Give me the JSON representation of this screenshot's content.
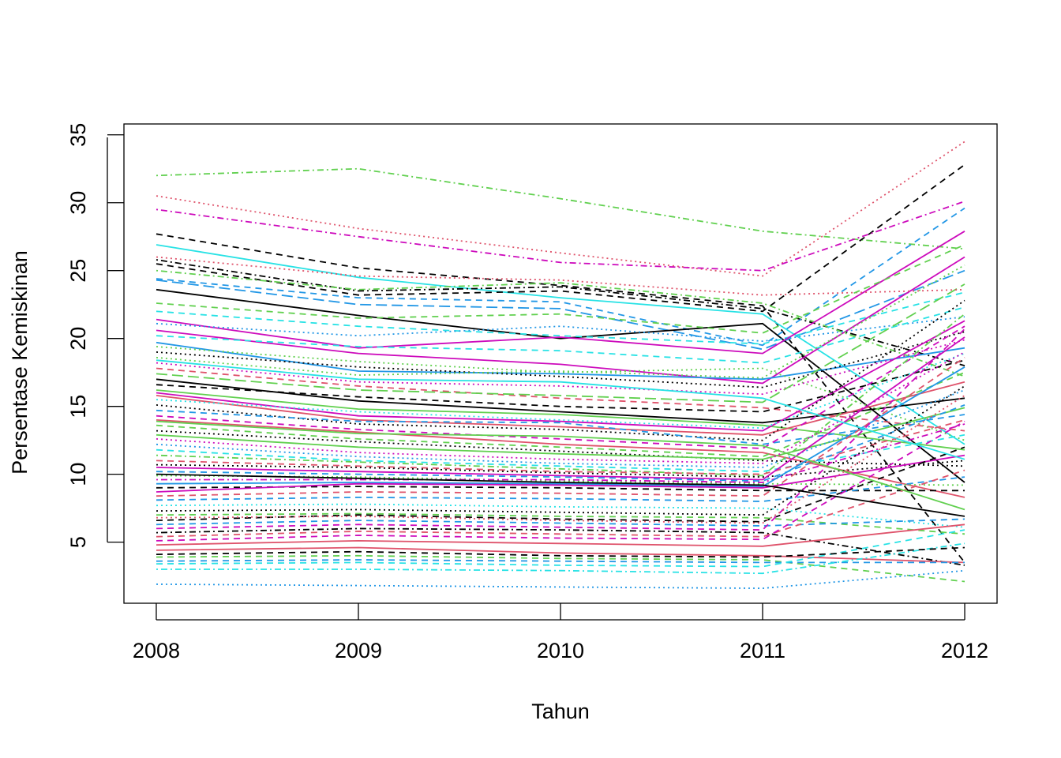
{
  "chart_data": {
    "type": "line",
    "title": "",
    "xlabel": "Tahun",
    "ylabel": "Persentase Kemiskinan",
    "x": [
      2008,
      2009,
      2010,
      2011,
      2012
    ],
    "x_tick_labels": [
      "2008",
      "2009",
      "2010",
      "2011",
      "2012"
    ],
    "y_ticks": [
      5,
      10,
      15,
      20,
      25,
      30
    ],
    "y_tick_labels": [
      "5",
      "10",
      "15",
      "20",
      "25",
      "30"
    ],
    "xlim": [
      2007.84,
      2012.16
    ],
    "ylim": [
      0.5,
      35.8
    ],
    "grid": false,
    "legend": "none",
    "palette": [
      "#000000",
      "#DF536B",
      "#61D04F",
      "#2297E6",
      "#28E2E5",
      "#CD0BBC"
    ],
    "series": [
      {
        "values": [
          32.0,
          32.5,
          30.3,
          27.9,
          26.6
        ],
        "color": "#61D04F",
        "dash": "dotdash"
      },
      {
        "values": [
          30.5,
          28.1,
          26.3,
          24.6,
          34.5
        ],
        "color": "#DF536B",
        "dash": "dotted"
      },
      {
        "values": [
          27.7,
          25.2,
          23.9,
          22.4,
          3.5
        ],
        "color": "#000000",
        "dash": "dashed"
      },
      {
        "values": [
          26.9,
          24.5,
          23.0,
          21.8,
          12.2
        ],
        "color": "#28E2E5",
        "dash": "solid"
      },
      {
        "values": [
          25.8,
          23.5,
          23.8,
          22.2,
          18.0
        ],
        "color": "#000000",
        "dash": "dotdash"
      },
      {
        "values": [
          25.5,
          23.2,
          23.5,
          22.0,
          32.8
        ],
        "color": "#000000",
        "dash": "dashed"
      },
      {
        "values": [
          25.0,
          23.6,
          24.1,
          22.6,
          17.2
        ],
        "color": "#61D04F",
        "dash": "dotdash"
      },
      {
        "values": [
          24.4,
          23.0,
          22.7,
          19.5,
          29.6
        ],
        "color": "#2297E6",
        "dash": "dashed"
      },
      {
        "values": [
          24.3,
          22.5,
          22.2,
          19.2,
          25.0
        ],
        "color": "#2297E6",
        "dash": "longdash"
      },
      {
        "values": [
          23.6,
          21.7,
          20.0,
          21.1,
          9.4
        ],
        "color": "#000000",
        "dash": "solid"
      },
      {
        "values": [
          22.0,
          20.9,
          20.2,
          19.6,
          23.4
        ],
        "color": "#28E2E5",
        "dash": "dashed"
      },
      {
        "values": [
          21.4,
          19.3,
          20.1,
          18.9,
          27.9
        ],
        "color": "#CD0BBC",
        "dash": "solid"
      },
      {
        "values": [
          21.1,
          20.2,
          20.9,
          19.8,
          21.6
        ],
        "color": "#2297E6",
        "dash": "dotted"
      },
      {
        "values": [
          20.6,
          18.9,
          18.1,
          16.7,
          26.0
        ],
        "color": "#CD0BBC",
        "dash": "solid"
      },
      {
        "values": [
          20.2,
          19.4,
          19.1,
          18.2,
          22.3
        ],
        "color": "#28E2E5",
        "dash": "dashed"
      },
      {
        "values": [
          19.7,
          17.6,
          17.4,
          17.0,
          19.3
        ],
        "color": "#2297E6",
        "dash": "solid"
      },
      {
        "values": [
          19.4,
          18.3,
          17.5,
          17.8,
          12.5
        ],
        "color": "#61D04F",
        "dash": "dotted"
      },
      {
        "values": [
          19.0,
          17.9,
          17.2,
          16.4,
          20.5
        ],
        "color": "#000000",
        "dash": "dotted"
      },
      {
        "values": [
          18.6,
          17.3,
          17.6,
          17.1,
          25.4
        ],
        "color": "#61D04F",
        "dash": "dotted"
      },
      {
        "values": [
          18.2,
          16.8,
          16.5,
          15.9,
          19.9
        ],
        "color": "#CD0BBC",
        "dash": "dotted"
      },
      {
        "values": [
          17.8,
          16.5,
          15.6,
          14.9,
          13.2
        ],
        "color": "#DF536B",
        "dash": "dashed"
      },
      {
        "values": [
          17.4,
          16.2,
          15.8,
          15.3,
          24.0
        ],
        "color": "#61D04F",
        "dash": "longdash"
      },
      {
        "values": [
          17.0,
          15.4,
          14.6,
          13.8,
          15.6
        ],
        "color": "#000000",
        "dash": "solid"
      },
      {
        "values": [
          16.6,
          15.7,
          15.0,
          14.6,
          18.4
        ],
        "color": "#000000",
        "dash": "dashed"
      },
      {
        "values": [
          16.2,
          14.8,
          14.4,
          13.6,
          11.8
        ],
        "color": "#61D04F",
        "dash": "solid"
      },
      {
        "values": [
          16.0,
          14.3,
          13.9,
          13.2,
          21.3
        ],
        "color": "#CD0BBC",
        "dash": "solid"
      },
      {
        "values": [
          15.8,
          14.0,
          13.5,
          12.9,
          16.8
        ],
        "color": "#DF536B",
        "dash": "solid"
      },
      {
        "values": [
          15.5,
          14.6,
          14.0,
          13.4,
          18.9
        ],
        "color": "#28E2E5",
        "dash": "dotted"
      },
      {
        "values": [
          15.1,
          13.7,
          13.3,
          12.5,
          22.8
        ],
        "color": "#000000",
        "dash": "dotted"
      },
      {
        "values": [
          14.7,
          13.9,
          13.8,
          12.2,
          14.4
        ],
        "color": "#2297E6",
        "dash": "dashed"
      },
      {
        "values": [
          14.3,
          13.3,
          12.6,
          11.9,
          20.9
        ],
        "color": "#CD0BBC",
        "dash": "dashed"
      },
      {
        "values": [
          14.0,
          13.1,
          12.2,
          11.6,
          8.3
        ],
        "color": "#DF536B",
        "dash": "solid"
      },
      {
        "values": [
          13.6,
          12.6,
          12.0,
          11.3,
          17.5
        ],
        "color": "#61D04F",
        "dash": "dashed"
      },
      {
        "values": [
          13.2,
          12.4,
          11.7,
          11.0,
          10.6
        ],
        "color": "#000000",
        "dash": "dotted"
      },
      {
        "values": [
          12.9,
          12.0,
          11.5,
          11.1,
          14.9
        ],
        "color": "#61D04F",
        "dash": "solid"
      },
      {
        "values": [
          12.6,
          11.6,
          11.1,
          10.8,
          19.0
        ],
        "color": "#CD0BBC",
        "dash": "dotted"
      },
      {
        "values": [
          12.2,
          11.3,
          10.8,
          10.5,
          16.2
        ],
        "color": "#2297E6",
        "dash": "dotted"
      },
      {
        "values": [
          11.8,
          11.0,
          10.6,
          10.2,
          12.9
        ],
        "color": "#28E2E5",
        "dash": "dashed"
      },
      {
        "values": [
          11.4,
          10.9,
          10.4,
          9.9,
          21.8
        ],
        "color": "#61D04F",
        "dash": "dotdash"
      },
      {
        "values": [
          11.0,
          10.6,
          10.2,
          10.0,
          14.0
        ],
        "color": "#DF536B",
        "dash": "dashed"
      },
      {
        "values": [
          10.7,
          10.5,
          10.1,
          9.8,
          11.0
        ],
        "color": "#000000",
        "dash": "dotted"
      },
      {
        "values": [
          10.5,
          10.2,
          9.9,
          9.6,
          20.1
        ],
        "color": "#CD0BBC",
        "dash": "solid"
      },
      {
        "values": [
          10.2,
          10.0,
          9.8,
          9.5,
          15.1
        ],
        "color": "#2297E6",
        "dash": "dashed"
      },
      {
        "values": [
          9.9,
          9.8,
          9.5,
          9.3,
          9.2
        ],
        "color": "#61D04F",
        "dash": "dotted"
      },
      {
        "values": [
          9.6,
          9.6,
          9.6,
          9.4,
          13.7
        ],
        "color": "#CD0BBC",
        "dash": "dotdash"
      },
      {
        "values": [
          9.3,
          9.4,
          9.3,
          9.1,
          17.9
        ],
        "color": "#2297E6",
        "dash": "solid"
      },
      {
        "values": [
          9.0,
          9.1,
          9.0,
          8.8,
          8.8
        ],
        "color": "#000000",
        "dash": "dashed"
      },
      {
        "values": [
          8.7,
          9.3,
          9.2,
          9.0,
          11.4
        ],
        "color": "#CD0BBC",
        "dash": "solid"
      },
      {
        "values": [
          8.4,
          8.7,
          8.6,
          8.4,
          18.6
        ],
        "color": "#DF536B",
        "dash": "dashed"
      },
      {
        "values": [
          8.1,
          8.3,
          8.2,
          8.0,
          9.8
        ],
        "color": "#2297E6",
        "dash": "dashed"
      },
      {
        "values": [
          7.7,
          7.8,
          7.6,
          7.5,
          6.1
        ],
        "color": "#28E2E5",
        "dash": "dotted"
      },
      {
        "values": [
          7.3,
          7.4,
          7.2,
          7.0,
          16.5
        ],
        "color": "#000000",
        "dash": "dotted"
      },
      {
        "values": [
          7.0,
          7.1,
          6.9,
          6.8,
          5.6
        ],
        "color": "#61D04F",
        "dash": "dashed"
      },
      {
        "values": [
          6.6,
          7.0,
          6.7,
          6.5,
          12.0
        ],
        "color": "#000000",
        "dash": "dashed"
      },
      {
        "values": [
          6.3,
          6.6,
          6.4,
          6.2,
          6.7
        ],
        "color": "#2297E6",
        "dash": "dashed"
      },
      {
        "values": [
          6.0,
          6.3,
          6.1,
          5.9,
          20.7
        ],
        "color": "#CD0BBC",
        "dash": "dashed"
      },
      {
        "values": [
          5.7,
          6.0,
          5.9,
          5.7,
          3.3
        ],
        "color": "#000000",
        "dash": "dotdash"
      },
      {
        "values": [
          5.4,
          5.8,
          5.6,
          5.4,
          10.3
        ],
        "color": "#DF536B",
        "dash": "dashed"
      },
      {
        "values": [
          5.1,
          5.5,
          5.3,
          5.2,
          13.9
        ],
        "color": "#CD0BBC",
        "dash": "dashed"
      },
      {
        "values": [
          4.8,
          5.1,
          4.9,
          4.7,
          6.3
        ],
        "color": "#DF536B",
        "dash": "solid"
      },
      {
        "values": [
          4.4,
          4.6,
          4.2,
          4.0,
          3.5
        ],
        "color": "#DF536B",
        "dash": "solid"
      },
      {
        "values": [
          3.9,
          4.0,
          3.8,
          3.7,
          2.1
        ],
        "color": "#61D04F",
        "dash": "dashed"
      },
      {
        "values": [
          3.6,
          3.7,
          3.6,
          3.5,
          3.5
        ],
        "color": "#2297E6",
        "dash": "dashed"
      },
      {
        "values": [
          3.4,
          3.5,
          3.3,
          3.2,
          5.9
        ],
        "color": "#28E2E5",
        "dash": "dashed"
      },
      {
        "values": [
          3.0,
          3.0,
          2.9,
          2.7,
          4.9
        ],
        "color": "#28E2E5",
        "dash": "dotdash"
      },
      {
        "values": [
          1.9,
          1.8,
          1.7,
          1.6,
          2.9
        ],
        "color": "#2297E6",
        "dash": "dotted"
      },
      {
        "values": [
          29.5,
          27.5,
          25.6,
          25.0,
          30.1
        ],
        "color": "#CD0BBC",
        "dash": "dotdash"
      },
      {
        "values": [
          26.0,
          24.6,
          24.3,
          23.2,
          23.6
        ],
        "color": "#DF536B",
        "dash": "dotted"
      },
      {
        "values": [
          22.6,
          21.5,
          21.8,
          20.4,
          26.9
        ],
        "color": "#61D04F",
        "dash": "dashed"
      },
      {
        "values": [
          18.4,
          17.0,
          16.8,
          15.6,
          11.1
        ],
        "color": "#28E2E5",
        "dash": "solid"
      },
      {
        "values": [
          13.9,
          13.0,
          12.8,
          12.1,
          7.4
        ],
        "color": "#61D04F",
        "dash": "solid"
      },
      {
        "values": [
          10.0,
          9.7,
          9.4,
          9.2,
          6.9
        ],
        "color": "#000000",
        "dash": "solid"
      },
      {
        "values": [
          6.8,
          6.9,
          6.6,
          6.4,
          15.8
        ],
        "color": "#DF536B",
        "dash": "dotted"
      },
      {
        "values": [
          4.1,
          4.3,
          4.0,
          3.9,
          4.6
        ],
        "color": "#000000",
        "dash": "dashed"
      }
    ]
  }
}
